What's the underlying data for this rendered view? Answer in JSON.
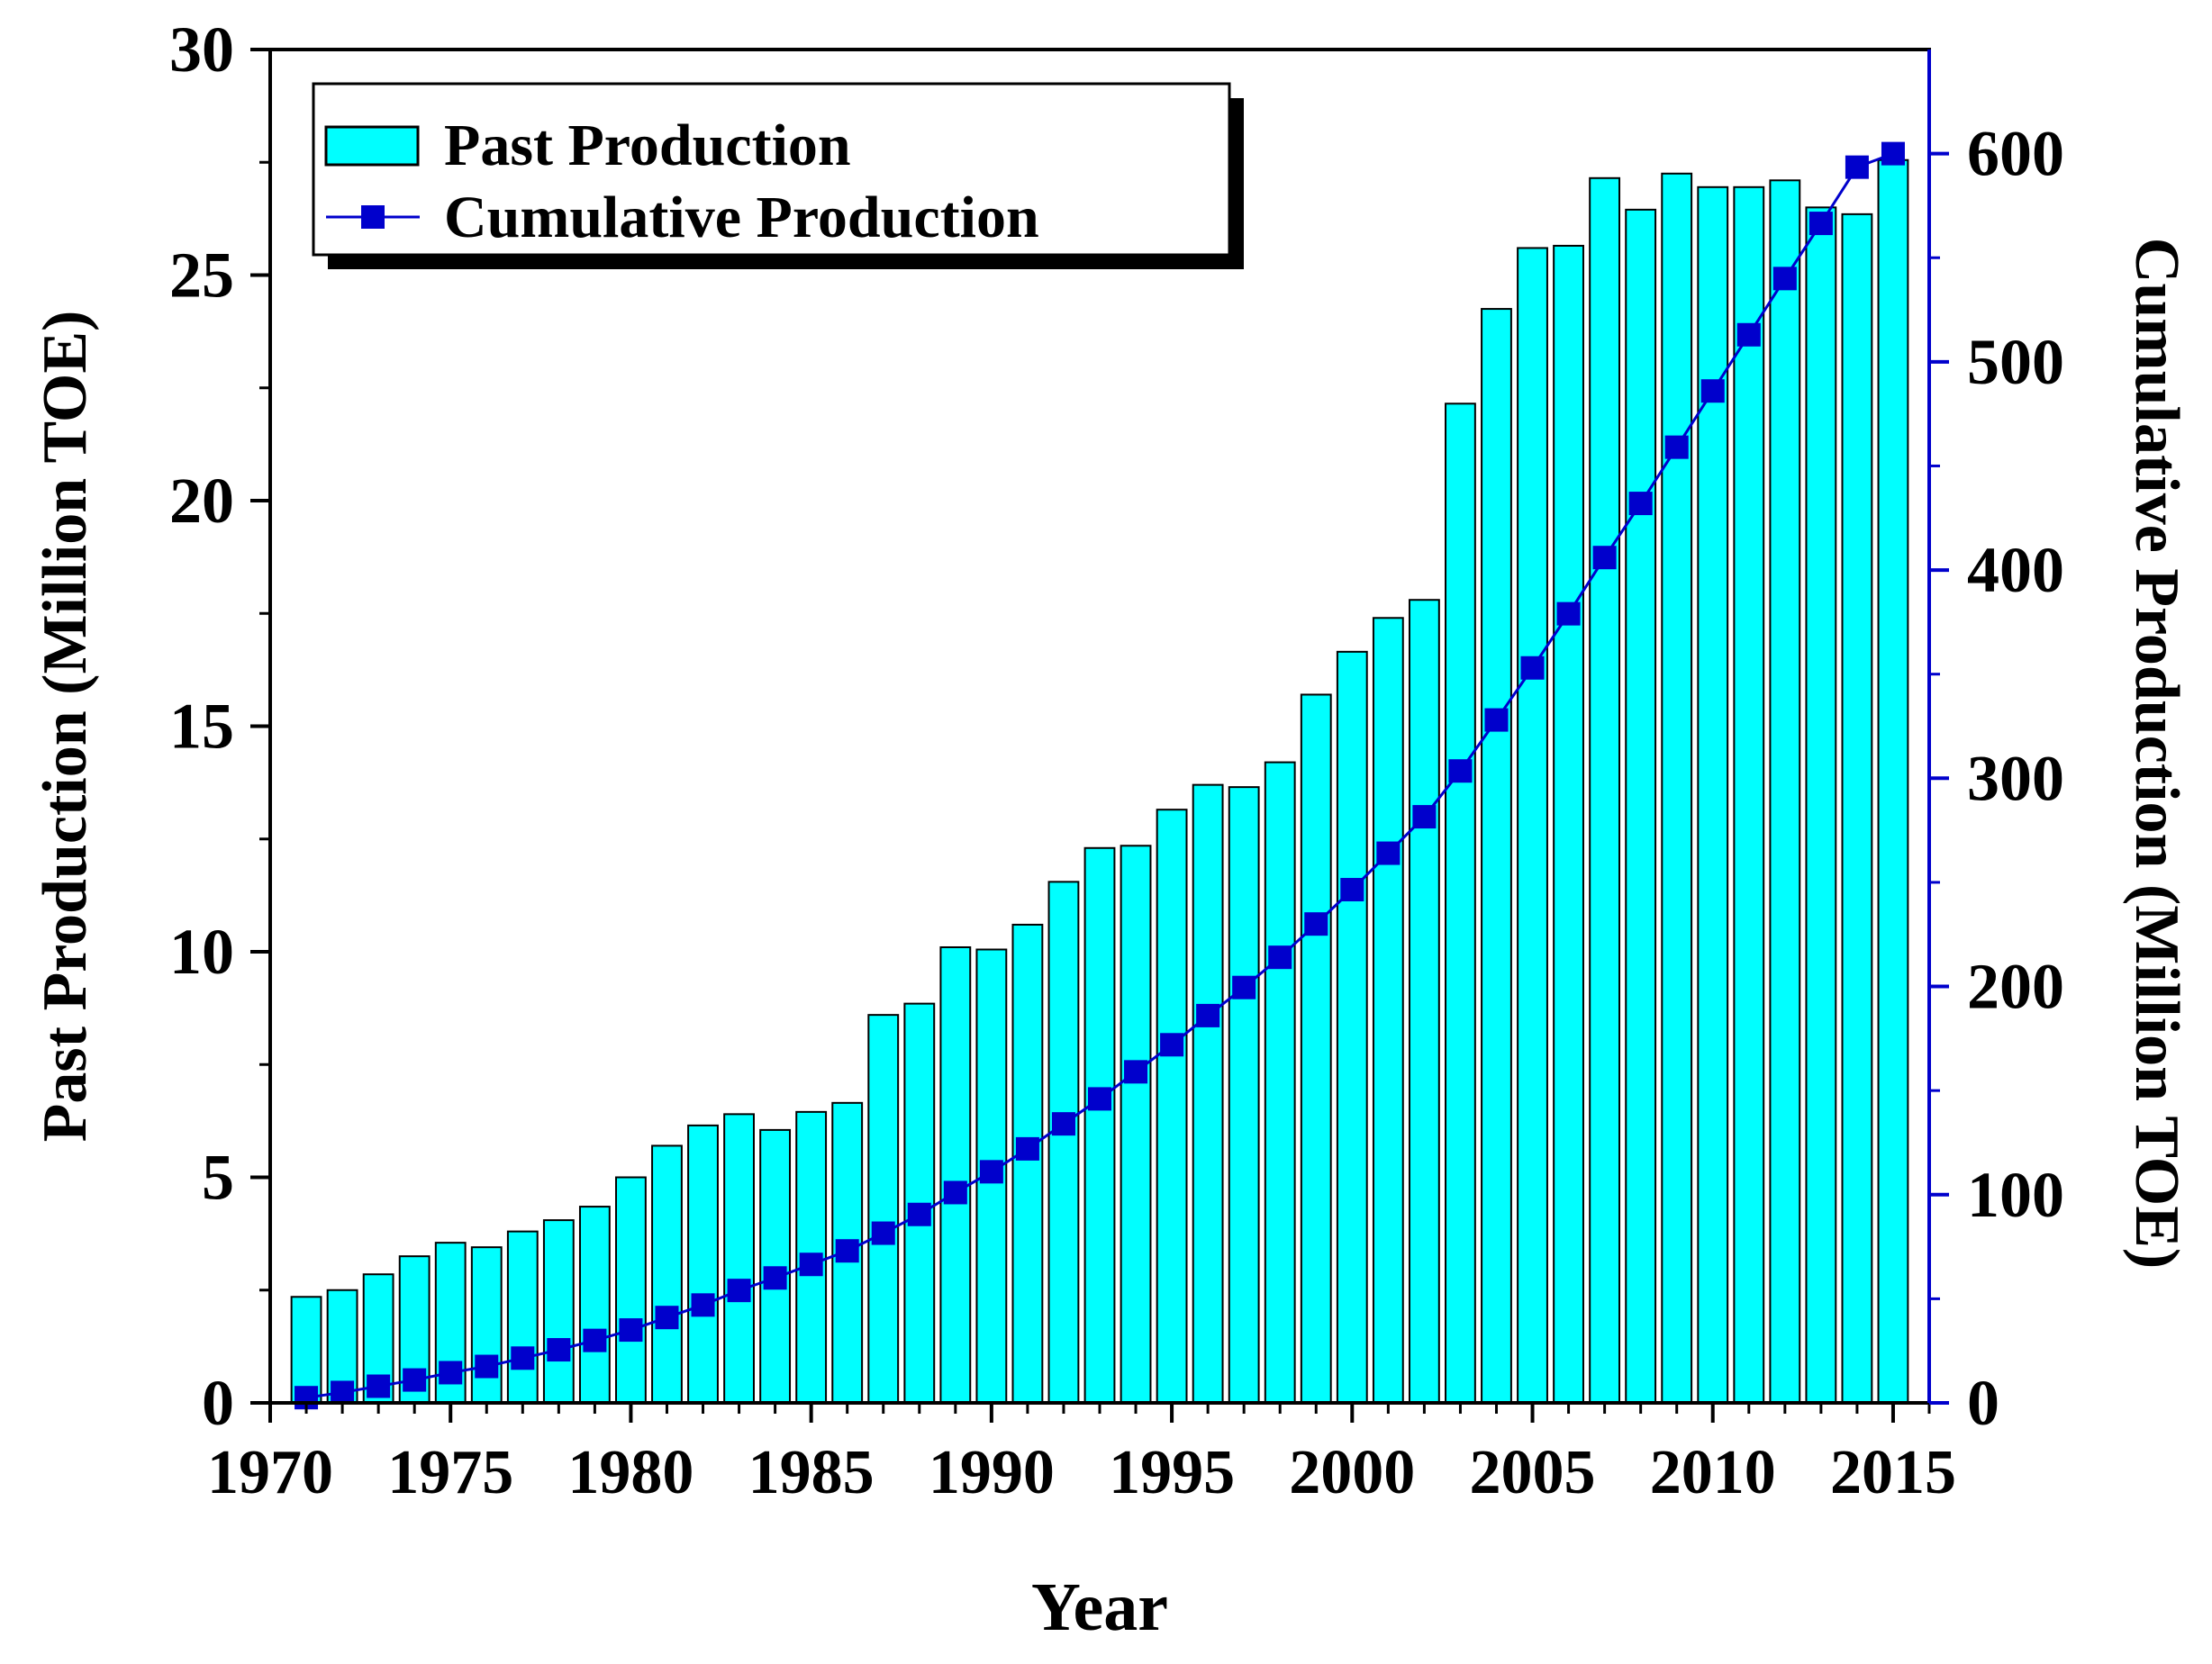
{
  "chart_data": {
    "type": "bar",
    "xlabel": "Year",
    "ylabel": "Past Production (Million TOE)",
    "y2label": "Cumulative Production (Million TOE)",
    "x": [
      1971,
      1972,
      1973,
      1974,
      1975,
      1976,
      1977,
      1978,
      1979,
      1980,
      1981,
      1982,
      1983,
      1984,
      1985,
      1986,
      1987,
      1988,
      1989,
      1990,
      1991,
      1992,
      1993,
      1994,
      1995,
      1996,
      1997,
      1998,
      1999,
      2000,
      2001,
      2002,
      2003,
      2004,
      2005,
      2006,
      2007,
      2008,
      2009,
      2010,
      2011,
      2012,
      2013,
      2014,
      2015
    ],
    "xlim": [
      1970,
      2016
    ],
    "ylim": [
      0,
      30
    ],
    "y2lim": [
      0,
      650
    ],
    "x_ticks": [
      "1970",
      "1975",
      "1980",
      "1985",
      "1990",
      "1995",
      "2000",
      "2005",
      "2010",
      "2015"
    ],
    "y_ticks": [
      "0",
      "5",
      "10",
      "15",
      "20",
      "25",
      "30"
    ],
    "y2_ticks": [
      "0",
      "100",
      "200",
      "300",
      "400",
      "500",
      "600"
    ],
    "series": [
      {
        "name": "Past Production",
        "type": "bar",
        "axis": "left",
        "color": "#00FFFF",
        "values": [
          2.35,
          2.5,
          2.85,
          3.25,
          3.55,
          3.45,
          3.8,
          4.05,
          4.35,
          5.0,
          5.7,
          6.15,
          6.4,
          6.05,
          6.45,
          6.65,
          8.6,
          8.85,
          10.1,
          10.05,
          10.6,
          11.55,
          12.3,
          12.35,
          13.15,
          13.7,
          13.65,
          14.2,
          15.7,
          16.65,
          17.4,
          17.8,
          22.15,
          24.25,
          25.6,
          25.65,
          27.15,
          26.45,
          27.25,
          26.95,
          26.95,
          27.1,
          26.5,
          26.35,
          27.55
        ]
      },
      {
        "name": "Cumulative Production",
        "type": "line",
        "axis": "right",
        "color": "#0000CC",
        "values": [
          2.5,
          5,
          8,
          11,
          14.5,
          17.5,
          21.5,
          25.5,
          30,
          35,
          41,
          47,
          54,
          60,
          66.5,
          73,
          81.5,
          90.5,
          101,
          111,
          122,
          134,
          146,
          159,
          172,
          186,
          199.5,
          214,
          230,
          246.5,
          264,
          281.5,
          303.5,
          328,
          353,
          379,
          406,
          432,
          459,
          486,
          513,
          540,
          566.5,
          593.5,
          600
        ]
      }
    ],
    "legend": {
      "position": "top-left",
      "entries": [
        "Past Production",
        "Cumulative Production"
      ]
    },
    "grid": false
  }
}
